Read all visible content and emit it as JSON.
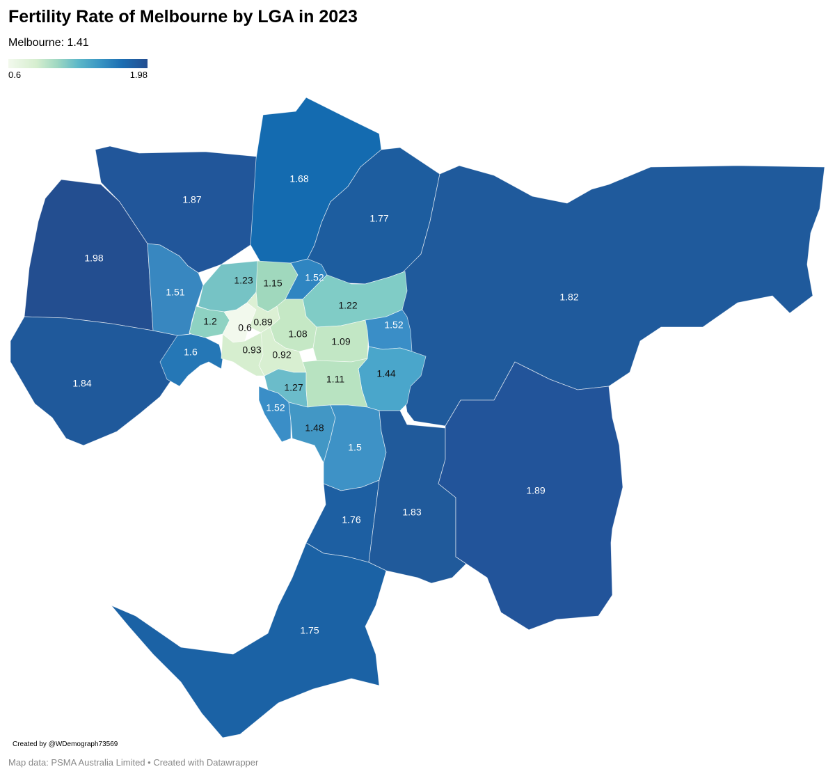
{
  "title": "Fertility Rate of Melbourne by LGA in 2023",
  "subtitle": "Melbourne: 1.41",
  "legend": {
    "min": "0.6",
    "max": "1.98"
  },
  "colors": {
    "scale": [
      "#f2f9ed",
      "#d6eecf",
      "#9fd8c2",
      "#5db8c8",
      "#3a97c4",
      "#1b6db2",
      "#234e90"
    ],
    "region_border": "#ffffff"
  },
  "regions": [
    {
      "value": "1.98",
      "fill": "#234e90"
    },
    {
      "value": "1.87",
      "fill": "#21569a"
    },
    {
      "value": "1.68",
      "fill": "#146bb0"
    },
    {
      "value": "1.77",
      "fill": "#1d5d9f"
    },
    {
      "value": "1.82",
      "fill": "#1f5a9c"
    },
    {
      "value": "1.84",
      "fill": "#1f599b"
    },
    {
      "value": "1.6",
      "fill": "#2577b6"
    },
    {
      "value": "1.51",
      "fill": "#3887c0"
    },
    {
      "value": "1.23",
      "fill": "#76c3c5"
    },
    {
      "value": "1.15",
      "fill": "#a0d8bd"
    },
    {
      "value": "1.52",
      "fill": "#2f85c1"
    },
    {
      "value": "1.22",
      "fill": "#80ccc6"
    },
    {
      "value": "1.2",
      "fill": "#8ed2c2"
    },
    {
      "value": "0.6",
      "fill": "#f2f9ed"
    },
    {
      "value": "0.89",
      "fill": "#dcf0d4"
    },
    {
      "value": "1.08",
      "fill": "#c5e8c5"
    },
    {
      "value": "1.09",
      "fill": "#c2e7c5"
    },
    {
      "value": "0.93",
      "fill": "#d6eecf"
    },
    {
      "value": "0.92",
      "fill": "#d8efd1"
    },
    {
      "value": "1.52",
      "fill": "#3a8ec7"
    },
    {
      "value": "1.44",
      "fill": "#4aa6cb"
    },
    {
      "value": "1.27",
      "fill": "#6bbcca"
    },
    {
      "value": "1.11",
      "fill": "#b8e3c1"
    },
    {
      "value": "1.52",
      "fill": "#3a8ec7"
    },
    {
      "value": "1.48",
      "fill": "#4297c5"
    },
    {
      "value": "1.5",
      "fill": "#3e92c6"
    },
    {
      "value": "1.76",
      "fill": "#1d5fa2"
    },
    {
      "value": "1.83",
      "fill": "#205a9b"
    },
    {
      "value": "1.89",
      "fill": "#22549a"
    },
    {
      "value": "1.75",
      "fill": "#1b62a5"
    }
  ],
  "credit": "Created by @WDemograph73569",
  "footer": "Map data: PSMA Australia Limited • Created with Datawrapper"
}
